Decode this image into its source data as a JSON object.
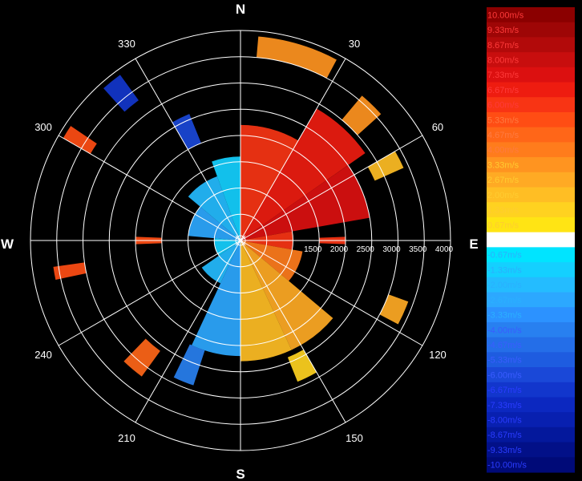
{
  "chart_data": {
    "type": "polar-heatmap",
    "title": "",
    "compass": {
      "n": "N",
      "e": "E",
      "s": "S",
      "w": "W"
    },
    "bearing_labels": [
      "30",
      "60",
      "120",
      "150",
      "210",
      "240",
      "300",
      "330"
    ],
    "bearing_angles": [
      30,
      60,
      120,
      150,
      210,
      240,
      300,
      330
    ],
    "range_rings": [
      500,
      1000,
      1500,
      2000,
      2500,
      3000,
      3500,
      4000
    ],
    "range_labels": [
      "1500",
      "2000",
      "2500",
      "3000",
      "3500",
      "4000"
    ],
    "range_label_values": [
      1500,
      2000,
      2500,
      3000,
      3500,
      4000
    ],
    "max_range": 4000,
    "unit": "m/s",
    "colorbar": {
      "labels": [
        "10.00m/s",
        "9.33m/s",
        "8.67m/s",
        "8.00m/s",
        "7.33m/s",
        "6.67m/s",
        "6.00m/s",
        "5.33m/s",
        "4.67m/s",
        "4.00m/s",
        "3.33m/s",
        "2.67m/s",
        "2.00m/s",
        "1.33m/s",
        "0.67m/s",
        "0.00m/s",
        "-0.67m/s",
        "-1.33m/s",
        "-2.00m/s",
        "-2.67m/s",
        "-3.33m/s",
        "-4.00m/s",
        "-4.67m/s",
        "-5.33m/s",
        "-6.00m/s",
        "-6.67m/s",
        "-7.33m/s",
        "-8.00m/s",
        "-8.67m/s",
        "-9.33m/s",
        "-10.00m/s"
      ],
      "values": [
        10,
        9.33,
        8.67,
        8,
        7.33,
        6.67,
        6,
        5.33,
        4.67,
        4,
        3.33,
        2.67,
        2,
        1.33,
        0.67,
        0,
        -0.67,
        -1.33,
        -2,
        -2.67,
        -3.33,
        -4,
        -4.67,
        -5.33,
        -6,
        -6.67,
        -7.33,
        -8,
        -8.67,
        -9.33,
        -10
      ],
      "colors": [
        "#8b0000",
        "#9e0606",
        "#b20a0a",
        "#c80e0e",
        "#dc1010",
        "#ee1c10",
        "#f83414",
        "#ff4d14",
        "#ff6618",
        "#ff7c1c",
        "#ff9420",
        "#ffaa24",
        "#ffbe24",
        "#ffd220",
        "#ffe414",
        "#ffffff",
        "#00e4ff",
        "#14d0ff",
        "#24bcff",
        "#2ca8ff",
        "#2c92ff",
        "#2880f0",
        "#246ee8",
        "#1e5ce0",
        "#1a48d8",
        "#1236cc",
        "#0c28c0",
        "#0820b0",
        "#04189c",
        "#021088",
        "#000a78"
      ]
    },
    "sectors": [
      {
        "az_from": 0,
        "az_to": 30,
        "r_from": 0,
        "r_to": 2200,
        "value": 6.0
      },
      {
        "az_from": 30,
        "az_to": 55,
        "r_from": 0,
        "r_to": 2900,
        "value": 6.7
      },
      {
        "az_from": 55,
        "az_to": 80,
        "r_from": 0,
        "r_to": 2500,
        "value": 7.3
      },
      {
        "az_from": 80,
        "az_to": 100,
        "r_from": 0,
        "r_to": 1000,
        "value": 6.0
      },
      {
        "az_from": 100,
        "az_to": 130,
        "r_from": 0,
        "r_to": 1200,
        "value": 4.0
      },
      {
        "az_from": 130,
        "az_to": 155,
        "r_from": 0,
        "r_to": 2300,
        "value": 2.7
      },
      {
        "az_from": 155,
        "az_to": 180,
        "r_from": 0,
        "r_to": 2300,
        "value": 2.0
      },
      {
        "az_from": 180,
        "az_to": 205,
        "r_from": 0,
        "r_to": 2200,
        "value": -2.7
      },
      {
        "az_from": 205,
        "az_to": 235,
        "r_from": 0,
        "r_to": 900,
        "value": -2.0
      },
      {
        "az_from": 235,
        "az_to": 275,
        "r_from": 0,
        "r_to": 500,
        "value": -1.3
      },
      {
        "az_from": 275,
        "az_to": 310,
        "r_from": 0,
        "r_to": 1000,
        "value": -2.7
      },
      {
        "az_from": 310,
        "az_to": 340,
        "r_from": 0,
        "r_to": 1300,
        "value": -2.0
      },
      {
        "az_from": 340,
        "az_to": 360,
        "r_from": 0,
        "r_to": 1600,
        "value": -1.3
      },
      {
        "az_from": 5,
        "az_to": 28,
        "r_from": 3500,
        "r_to": 3900,
        "value": 3.3
      },
      {
        "az_from": 40,
        "az_to": 48,
        "r_from": 3000,
        "r_to": 3600,
        "value": 3.3
      },
      {
        "az_from": 60,
        "az_to": 66,
        "r_from": 2800,
        "r_to": 3400,
        "value": 2.0
      },
      {
        "az_from": 110,
        "az_to": 118,
        "r_from": 3000,
        "r_to": 3400,
        "value": 2.7
      },
      {
        "az_from": 150,
        "az_to": 158,
        "r_from": 2400,
        "r_to": 2900,
        "value": 1.3
      },
      {
        "az_from": 198,
        "az_to": 206,
        "r_from": 2200,
        "r_to": 2900,
        "value": -4.0
      },
      {
        "az_from": 216,
        "az_to": 224,
        "r_from": 2600,
        "r_to": 3200,
        "value": 4.7
      },
      {
        "az_from": 330,
        "az_to": 338,
        "r_from": 2000,
        "r_to": 2600,
        "value": -6.0
      },
      {
        "az_from": 318,
        "az_to": 324,
        "r_from": 3300,
        "r_to": 3900,
        "value": -6.7
      },
      {
        "az_from": 300,
        "az_to": 304,
        "r_from": 3300,
        "r_to": 3900,
        "value": 5.3
      },
      {
        "az_from": 258,
        "az_to": 262,
        "r_from": 3000,
        "r_to": 3600,
        "value": 5.3
      },
      {
        "az_from": 268,
        "az_to": 272,
        "r_from": 1500,
        "r_to": 2000,
        "value": 5.3
      },
      {
        "az_from": 88,
        "az_to": 92,
        "r_from": 1500,
        "r_to": 2000,
        "value": 6.0
      }
    ]
  }
}
